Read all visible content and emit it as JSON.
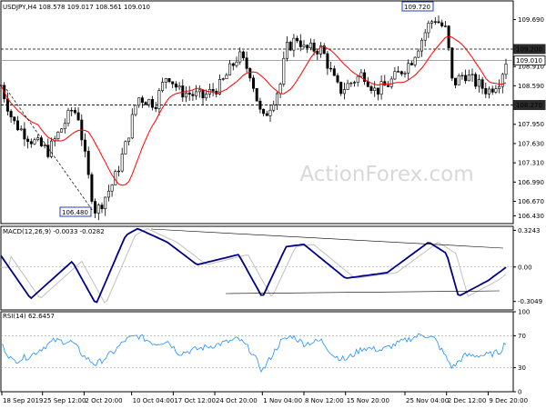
{
  "chart_data": [
    {
      "panel": "price",
      "type": "candlestick",
      "title": "USDJPY,H4  108.578 109.017 108.561 109.010",
      "watermark": "ActionForex.com",
      "ylim": [
        106.3,
        110.0
      ],
      "y_ticks": [
        "109.690",
        "109.200",
        "108.910",
        "108.590",
        "108.270",
        "107.950",
        "107.630",
        "107.310",
        "106.990",
        "106.670",
        "106.430"
      ],
      "x_ticks": [
        "18 Sep 2019",
        "25 Sep 12:00",
        "2 Oct 20:00",
        "10 Oct 04:00",
        "17 Oct 12:00",
        "24 Oct 20:00",
        "1 Nov 04:00",
        "8 Nov 12:00",
        "15 Nov 20:00",
        "25 Nov 04:00",
        "2 Dec 12:00",
        "9 Dec 20:00"
      ],
      "levels": [
        {
          "label": "109.200",
          "value": 109.2,
          "style": "dashed",
          "color": "#000000"
        },
        {
          "label": "108.270",
          "value": 108.27,
          "style": "dashed",
          "color": "#000000"
        },
        {
          "label": "109.010",
          "value": 109.01,
          "style": "solid",
          "color": "#999999"
        }
      ],
      "annotations": [
        {
          "text": "109.720",
          "value": 109.72
        },
        {
          "text": "106.480",
          "value": 106.48
        }
      ],
      "key_points": [
        {
          "x": "18 Sep 2019",
          "y": 108.6
        },
        {
          "x": "20 Sep",
          "y": 108.0
        },
        {
          "x": "23 Sep",
          "y": 107.7
        },
        {
          "x": "26 Sep",
          "y": 107.5
        },
        {
          "x": "30 Sep",
          "y": 108.2
        },
        {
          "x": "1 Oct",
          "y": 108.1
        },
        {
          "x": "3 Oct",
          "y": 106.9
        },
        {
          "x": "4 Oct",
          "y": 106.48
        },
        {
          "x": "7 Oct",
          "y": 107.0
        },
        {
          "x": "9 Oct",
          "y": 107.6
        },
        {
          "x": "11 Oct",
          "y": 108.4
        },
        {
          "x": "14 Oct",
          "y": 108.3
        },
        {
          "x": "16 Oct",
          "y": 108.8
        },
        {
          "x": "18 Oct",
          "y": 108.5
        },
        {
          "x": "22 Oct",
          "y": 108.4
        },
        {
          "x": "25 Oct",
          "y": 108.6
        },
        {
          "x": "28 Oct",
          "y": 109.1
        },
        {
          "x": "30 Oct",
          "y": 108.8
        },
        {
          "x": "1 Nov",
          "y": 108.0
        },
        {
          "x": "4 Nov",
          "y": 108.6
        },
        {
          "x": "5 Nov",
          "y": 109.2
        },
        {
          "x": "7 Nov",
          "y": 109.4
        },
        {
          "x": "8 Nov",
          "y": 109.2
        },
        {
          "x": "11 Nov",
          "y": 109.2
        },
        {
          "x": "13 Nov",
          "y": 108.7
        },
        {
          "x": "14 Nov",
          "y": 108.5
        },
        {
          "x": "18 Nov",
          "y": 108.8
        },
        {
          "x": "20 Nov",
          "y": 108.5
        },
        {
          "x": "22 Nov",
          "y": 108.6
        },
        {
          "x": "26 Nov",
          "y": 109.0
        },
        {
          "x": "29 Nov",
          "y": 109.6
        },
        {
          "x": "30 Nov",
          "y": 109.72
        },
        {
          "x": "2 Dec",
          "y": 109.5
        },
        {
          "x": "3 Dec",
          "y": 108.6
        },
        {
          "x": "5 Dec",
          "y": 108.8
        },
        {
          "x": "6 Dec",
          "y": 108.7
        },
        {
          "x": "9 Dec",
          "y": 108.5
        },
        {
          "x": "11 Dec",
          "y": 108.7
        },
        {
          "x": "12 Dec",
          "y": 109.01
        }
      ],
      "series": [
        {
          "name": "",
          "color": "#ff0000",
          "kind": "moving-average"
        },
        {
          "name": "",
          "color": "#000000",
          "kind": "candles"
        }
      ]
    },
    {
      "panel": "macd",
      "type": "line",
      "title": "MACD(12,26,9) -0.0033 -0.0282",
      "ylim": [
        -0.38,
        0.36
      ],
      "y_ticks": [
        "0.3243",
        "0.00",
        "-0.3049"
      ],
      "key_points": [
        {
          "x": "18 Sep",
          "y": 0.1
        },
        {
          "x": "23 Sep",
          "y": -0.28
        },
        {
          "x": "30 Sep",
          "y": 0.05
        },
        {
          "x": "4 Oct",
          "y": -0.33
        },
        {
          "x": "9 Oct",
          "y": 0.28
        },
        {
          "x": "11 Oct",
          "y": 0.34
        },
        {
          "x": "16 Oct",
          "y": 0.22
        },
        {
          "x": "21 Oct",
          "y": 0.02
        },
        {
          "x": "28 Oct",
          "y": 0.11
        },
        {
          "x": "1 Nov",
          "y": -0.27
        },
        {
          "x": "5 Nov",
          "y": 0.18
        },
        {
          "x": "8 Nov",
          "y": 0.2
        },
        {
          "x": "15 Nov",
          "y": -0.1
        },
        {
          "x": "22 Nov",
          "y": -0.05
        },
        {
          "x": "29 Nov",
          "y": 0.22
        },
        {
          "x": "2 Dec",
          "y": 0.12
        },
        {
          "x": "4 Dec",
          "y": -0.26
        },
        {
          "x": "9 Dec",
          "y": -0.12
        },
        {
          "x": "12 Dec",
          "y": -0.003
        }
      ],
      "series": [
        {
          "name": "",
          "color": "#00008b",
          "kind": "macd"
        },
        {
          "name": "",
          "color": "#c0c0c0",
          "kind": "signal"
        }
      ]
    },
    {
      "panel": "rsi",
      "type": "line",
      "title": "RSI(14) 62.6457",
      "ylim": [
        0,
        100
      ],
      "y_ticks": [
        "100",
        "70",
        "30",
        "0"
      ],
      "key_points": [
        {
          "x": "18 Sep",
          "y": 60
        },
        {
          "x": "20 Sep",
          "y": 38
        },
        {
          "x": "23 Sep",
          "y": 45
        },
        {
          "x": "25 Sep",
          "y": 55
        },
        {
          "x": "27 Sep",
          "y": 64
        },
        {
          "x": "30 Sep",
          "y": 62
        },
        {
          "x": "2 Oct",
          "y": 44
        },
        {
          "x": "4 Oct",
          "y": 34
        },
        {
          "x": "7 Oct",
          "y": 50
        },
        {
          "x": "9 Oct",
          "y": 65
        },
        {
          "x": "11 Oct",
          "y": 70
        },
        {
          "x": "14 Oct",
          "y": 60
        },
        {
          "x": "16 Oct",
          "y": 64
        },
        {
          "x": "18 Oct",
          "y": 48
        },
        {
          "x": "22 Oct",
          "y": 55
        },
        {
          "x": "25 Oct",
          "y": 60
        },
        {
          "x": "28 Oct",
          "y": 66
        },
        {
          "x": "30 Oct",
          "y": 52
        },
        {
          "x": "1 Nov",
          "y": 26
        },
        {
          "x": "4 Nov",
          "y": 62
        },
        {
          "x": "6 Nov",
          "y": 70
        },
        {
          "x": "8 Nov",
          "y": 60
        },
        {
          "x": "11 Nov",
          "y": 64
        },
        {
          "x": "13 Nov",
          "y": 45
        },
        {
          "x": "15 Nov",
          "y": 40
        },
        {
          "x": "18 Nov",
          "y": 55
        },
        {
          "x": "21 Nov",
          "y": 52
        },
        {
          "x": "25 Nov",
          "y": 64
        },
        {
          "x": "28 Nov",
          "y": 72
        },
        {
          "x": "30 Nov",
          "y": 66
        },
        {
          "x": "3 Dec",
          "y": 30
        },
        {
          "x": "5 Dec",
          "y": 45
        },
        {
          "x": "9 Dec",
          "y": 46
        },
        {
          "x": "11 Dec",
          "y": 50
        },
        {
          "x": "12 Dec",
          "y": 62.6457
        }
      ],
      "series": [
        {
          "name": "",
          "color": "#1e90ff",
          "kind": "rsi"
        }
      ]
    }
  ]
}
